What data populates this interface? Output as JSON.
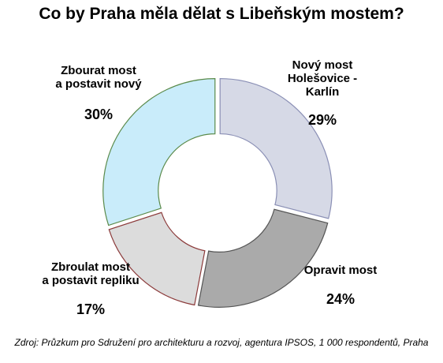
{
  "chart_data": {
    "type": "pie",
    "title": "Co by Praha měla dělat s Libeňským mostem?",
    "source": "Zdroj: Průzkum pro Sdružení pro architekturu a rozvoj, agentura IPSOS, 1 000 respondentů, Praha",
    "slices": [
      {
        "label_lines": [
          "Nový most",
          "Holešovice -",
          "Karlín"
        ],
        "value": 29,
        "display": "29%",
        "fill": "#d6d9e6",
        "stroke": "#8a8fb5"
      },
      {
        "label_lines": [
          "Opravit most"
        ],
        "value": 24,
        "display": "24%",
        "fill": "#aaaaaa",
        "stroke": "#555555"
      },
      {
        "label_lines": [
          "Zbroulat most",
          "a postavit repliku"
        ],
        "value": 17,
        "display": "17%",
        "fill": "#dcdcdc",
        "stroke": "#8b3a3a"
      },
      {
        "label_lines": [
          "Zbourat most",
          "a postavit nový"
        ],
        "value": 30,
        "display": "30%",
        "fill": "#c9ecfa",
        "stroke": "#5a8a4a"
      }
    ]
  }
}
